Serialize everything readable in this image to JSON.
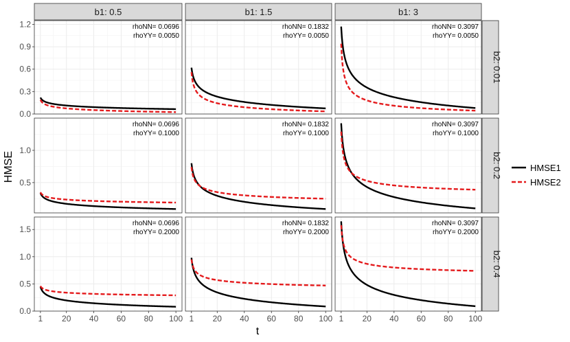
{
  "chart_data": {
    "type": "line",
    "title": "",
    "xlabel": "t",
    "ylabel": "HMSE",
    "x_ticks": [
      1,
      20,
      40,
      60,
      80,
      100
    ],
    "xlim": [
      1,
      100
    ],
    "grid": true,
    "legend_position": "right",
    "series_styles": [
      {
        "name": "HMSE1",
        "color": "#000000",
        "dash": "solid"
      },
      {
        "name": "HMSE2",
        "color": "#e41a1c",
        "dash": "dashed"
      }
    ],
    "col_labels": [
      "b1: 0.5",
      "b1: 1.5",
      "b1: 3"
    ],
    "row_labels": [
      "b2: 0.01",
      "b2: 0.2",
      "b2: 0.4"
    ],
    "rows": [
      {
        "ylim": [
          0,
          1.25
        ],
        "y_ticks": [
          0.0,
          0.3,
          0.6,
          0.9,
          1.2
        ],
        "y_tick_labels": [
          "0.0",
          "0.3",
          "0.6",
          "0.9",
          "1.2"
        ],
        "panels": [
          {
            "rhoNN": "rhoNN= 0.0696",
            "rhoYY": "rhoYY= 0.0050",
            "hmse1": {
              "start": 0.22,
              "end": 0.065,
              "k": 0.07
            },
            "hmse2": {
              "start": 0.19,
              "end": 0.025,
              "k": 0.09
            }
          },
          {
            "rhoNN": "rhoNN= 0.1832",
            "rhoYY": "rhoYY= 0.0050",
            "hmse1": {
              "start": 0.62,
              "end": 0.075,
              "k": 0.12
            },
            "hmse2": {
              "start": 0.56,
              "end": 0.035,
              "k": 0.3
            }
          },
          {
            "rhoNN": "rhoNN= 0.3097",
            "rhoYY": "rhoYY= 0.0050",
            "hmse1": {
              "start": 1.17,
              "end": 0.08,
              "k": 0.2
            },
            "hmse2": {
              "start": 0.94,
              "end": 0.045,
              "k": 0.45
            }
          }
        ]
      },
      {
        "ylim": [
          0.03,
          1.5
        ],
        "y_ticks": [
          0.5,
          1.0
        ],
        "y_tick_labels": [
          "0.5",
          "1.0"
        ],
        "panels": [
          {
            "rhoNN": "rhoNN= 0.0696",
            "rhoYY": "rhoYY= 0.1000",
            "hmse1": {
              "start": 0.34,
              "end": 0.09,
              "k": 0.05
            },
            "hmse2": {
              "start": 0.35,
              "end": 0.19,
              "k": 0.12
            }
          },
          {
            "rhoNN": "rhoNN= 0.1832",
            "rhoYY": "rhoYY= 0.1000",
            "hmse1": {
              "start": 0.8,
              "end": 0.09,
              "k": 0.12
            },
            "hmse2": {
              "start": 0.74,
              "end": 0.25,
              "k": 0.3
            }
          },
          {
            "rhoNN": "rhoNN= 0.3097",
            "rhoYY": "rhoYY= 0.1000",
            "hmse1": {
              "start": 1.42,
              "end": 0.1,
              "k": 0.2
            },
            "hmse2": {
              "start": 1.29,
              "end": 0.39,
              "k": 0.45
            }
          }
        ]
      },
      {
        "ylim": [
          0.0,
          1.73
        ],
        "y_ticks": [
          0.0,
          0.5,
          1.0,
          1.5
        ],
        "y_tick_labels": [
          "0.0",
          "0.5",
          "1.0",
          "1.5"
        ],
        "panels": [
          {
            "rhoNN": "rhoNN= 0.0696",
            "rhoYY": "rhoYY= 0.2000",
            "hmse1": {
              "start": 0.45,
              "end": 0.08,
              "k": 0.07
            },
            "hmse2": {
              "start": 0.46,
              "end": 0.29,
              "k": 0.12
            }
          },
          {
            "rhoNN": "rhoNN= 0.1832",
            "rhoYY": "rhoYY= 0.2000",
            "hmse1": {
              "start": 0.98,
              "end": 0.085,
              "k": 0.12
            },
            "hmse2": {
              "start": 0.95,
              "end": 0.47,
              "k": 0.3
            }
          },
          {
            "rhoNN": "rhoNN= 0.3097",
            "rhoYY": "rhoYY= 0.2000",
            "hmse1": {
              "start": 1.65,
              "end": 0.09,
              "k": 0.2
            },
            "hmse2": {
              "start": 1.58,
              "end": 0.74,
              "k": 0.45
            }
          }
        ]
      }
    ]
  }
}
